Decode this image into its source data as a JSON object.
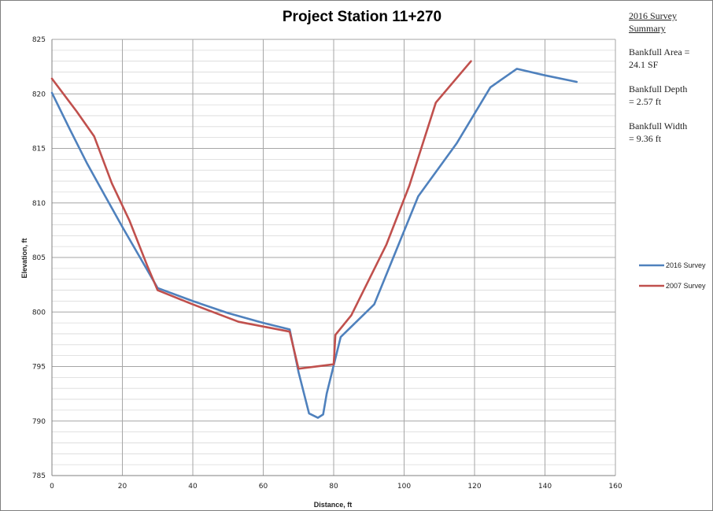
{
  "summary": {
    "heading_line1": "2016 Survey",
    "heading_line2": "Summary",
    "area_line1": "Bankfull Area =",
    "area_line2": "24.1 SF",
    "depth_line1": "Bankfull Depth",
    "depth_line2": "= 2.57 ft",
    "width_line1": "Bankfull Width",
    "width_line2": "= 9.36 ft"
  },
  "chart_data": {
    "type": "line",
    "title": "Project Station 11+270",
    "xlabel": "Distance, ft",
    "ylabel": "Elevation, ft",
    "xlim": [
      0,
      160
    ],
    "ylim": [
      785,
      825
    ],
    "x_ticks": [
      0,
      20,
      40,
      60,
      80,
      100,
      120,
      140,
      160
    ],
    "y_ticks": [
      785,
      790,
      795,
      800,
      805,
      810,
      815,
      820,
      825
    ],
    "grid": true,
    "legend_position": "right",
    "series": [
      {
        "name": "2016 Survey",
        "color": "#4f81bd",
        "x": [
          0,
          5,
          10,
          15,
          20,
          25,
          30,
          40,
          50,
          60,
          67.5,
          70,
          73,
          75.5,
          77,
          78,
          82,
          91.5,
          104,
          115,
          124.5,
          132,
          140,
          149
        ],
        "y": [
          820.1,
          816.8,
          813.6,
          810.7,
          807.8,
          805,
          802.2,
          801,
          799.9,
          799,
          798.4,
          794.5,
          790.7,
          790.3,
          790.6,
          792.5,
          797.7,
          800.7,
          810.6,
          815.5,
          820.6,
          822.3,
          821.7,
          821.1
        ]
      },
      {
        "name": "2007 Survey",
        "color": "#c0504d",
        "x": [
          0,
          7,
          12,
          17,
          22,
          27,
          30,
          40,
          53,
          67.5,
          70,
          80,
          80.5,
          85,
          95,
          101.5,
          109,
          119
        ],
        "y": [
          821.4,
          818.4,
          816.1,
          811.8,
          808.4,
          804.3,
          802,
          800.7,
          799.1,
          798.2,
          794.8,
          795.2,
          797.9,
          799.7,
          806.2,
          811.6,
          819.2,
          823
        ]
      }
    ]
  }
}
